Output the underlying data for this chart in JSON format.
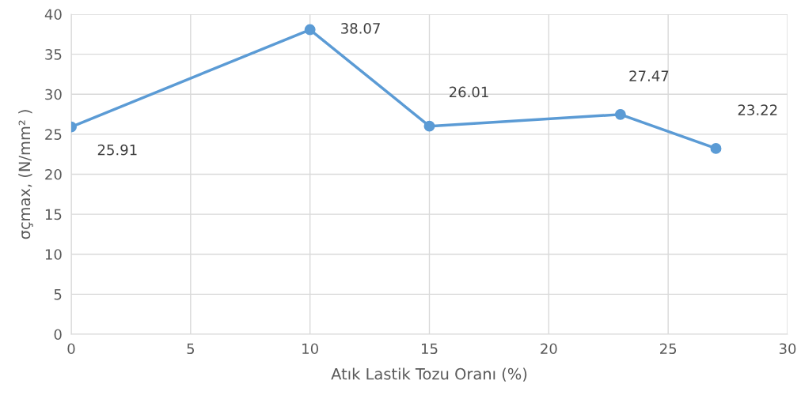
{
  "chart_data": {
    "type": "line",
    "xlabel": "Atık Lastik Tozu Oranı (%)",
    "ylabel": "σçmax, (N/mm² )",
    "x": [
      0,
      10,
      15,
      23,
      27
    ],
    "series": [
      {
        "color": "#5b9bd5",
        "values": [
          25.91,
          38.07,
          26.01,
          27.47,
          23.22
        ]
      }
    ],
    "xlim": [
      0,
      30
    ],
    "xticks": [
      0,
      5,
      10,
      15,
      20,
      25,
      30
    ],
    "ylim": [
      0,
      40
    ],
    "yticks": [
      0,
      5,
      10,
      15,
      20,
      25,
      30,
      35,
      40
    ],
    "grid": true,
    "marker": "circle",
    "line_style": "solid",
    "data_labels": true
  }
}
